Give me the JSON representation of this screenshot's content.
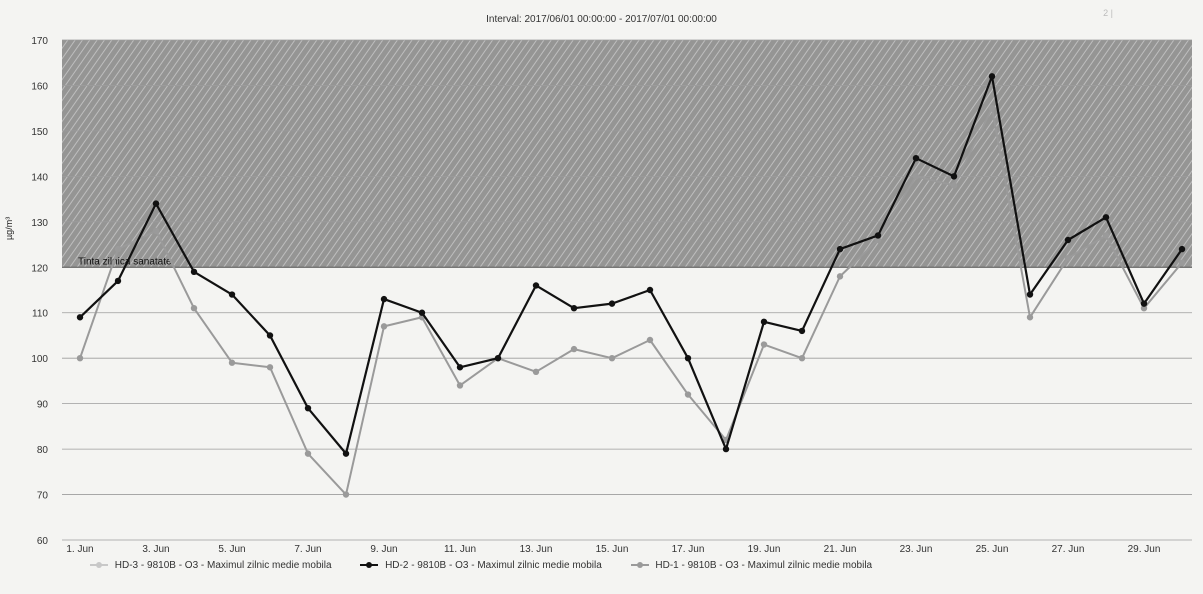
{
  "page_mark": "2 |",
  "chart_data": {
    "type": "line",
    "title": "Interval: 2017/06/01 00:00:00 - 2017/07/01 00:00:00",
    "ylabel": "µg/m³",
    "xlabel": "",
    "ylim": [
      60,
      170
    ],
    "yticks": [
      60,
      70,
      80,
      90,
      100,
      110,
      120,
      130,
      140,
      150,
      160,
      170
    ],
    "xticks": [
      "1. Jun",
      "3. Jun",
      "5. Jun",
      "7. Jun",
      "9. Jun",
      "11. Jun",
      "13. Jun",
      "15. Jun",
      "17. Jun",
      "19. Jun",
      "21. Jun",
      "23. Jun",
      "25. Jun",
      "27. Jun",
      "29. Jun"
    ],
    "x": [
      1,
      2,
      3,
      4,
      5,
      6,
      7,
      8,
      9,
      10,
      11,
      12,
      13,
      14,
      15,
      16,
      17,
      18,
      19,
      20,
      21,
      22,
      23,
      24,
      25,
      26,
      27,
      28,
      29,
      30
    ],
    "threshold": {
      "label": "Tinta zilnica sanatate",
      "value": 120,
      "band_top": 170
    },
    "grid": true,
    "legend_position": "bottom",
    "series": [
      {
        "name": "HD-2 - 9810B - O3 - Maximul zilnic medie mobila",
        "color": "#111111",
        "values": [
          109,
          117,
          134,
          119,
          114,
          105,
          89,
          79,
          113,
          110,
          98,
          100,
          116,
          111,
          112,
          115,
          100,
          80,
          108,
          106,
          124,
          127,
          144,
          140,
          162,
          114,
          126,
          131,
          112,
          124
        ]
      },
      {
        "name": "HD-1 - 9810B - O3 - Maximul zilnic medie mobila",
        "color": "#9a9a9a",
        "values": [
          100,
          124,
          128,
          111,
          99,
          98,
          79,
          70,
          107,
          109,
          94,
          100,
          97,
          102,
          100,
          104,
          92,
          82,
          103,
          100,
          118,
          126,
          140,
          138,
          155,
          109,
          122,
          127,
          111,
          121
        ]
      }
    ],
    "legend_prefix": "HD-3 - 9810B - O3 - Maximul zilnic medie mobila"
  }
}
